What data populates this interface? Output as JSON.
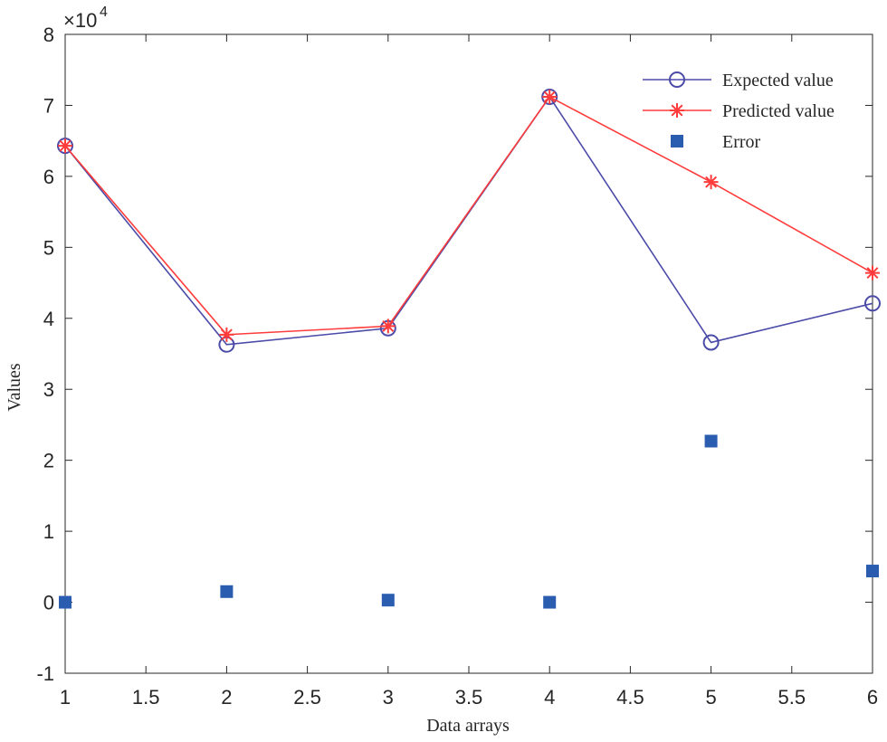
{
  "chart_data": {
    "type": "line",
    "title": "",
    "xlabel": "Data arrays",
    "ylabel": "Values",
    "y_multiplier": {
      "base": "×10",
      "exponent": "4"
    },
    "x": [
      1,
      2,
      3,
      4,
      5,
      6
    ],
    "xlim": [
      1,
      6
    ],
    "ylim": [
      -1,
      8
    ],
    "x_ticks": [
      "1",
      "1.5",
      "2",
      "2.5",
      "3",
      "3.5",
      "4",
      "4.5",
      "5",
      "5.5",
      "6"
    ],
    "y_ticks": [
      "-1",
      "0",
      "1",
      "2",
      "3",
      "4",
      "5",
      "6",
      "7",
      "8"
    ],
    "grid": false,
    "legend_position": "top-right",
    "series": [
      {
        "name": "Expected value",
        "marker": "circle",
        "style": "line",
        "color": "#4b4ba8",
        "values": [
          6.43,
          3.63,
          3.86,
          7.12,
          3.66,
          4.21
        ]
      },
      {
        "name": "Predicted value",
        "marker": "star",
        "style": "line",
        "color": "#ff3b3b",
        "values": [
          6.43,
          3.77,
          3.89,
          7.12,
          5.92,
          4.64
        ]
      },
      {
        "name": "Error",
        "marker": "square",
        "style": "markers",
        "color": "#2a5db0",
        "values": [
          0.0,
          0.15,
          0.03,
          0.0,
          2.27,
          0.44
        ]
      }
    ]
  }
}
